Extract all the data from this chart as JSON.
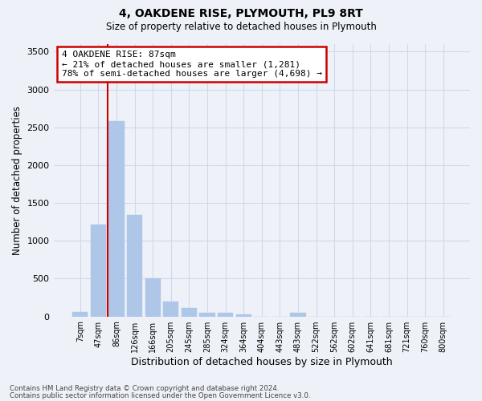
{
  "title": "4, OAKDENE RISE, PLYMOUTH, PL9 8RT",
  "subtitle": "Size of property relative to detached houses in Plymouth",
  "xlabel": "Distribution of detached houses by size in Plymouth",
  "ylabel": "Number of detached properties",
  "bar_color": "#aec6e8",
  "bar_edge_color": "#aec6e8",
  "categories": [
    "7sqm",
    "47sqm",
    "86sqm",
    "126sqm",
    "166sqm",
    "205sqm",
    "245sqm",
    "285sqm",
    "324sqm",
    "364sqm",
    "404sqm",
    "443sqm",
    "483sqm",
    "522sqm",
    "562sqm",
    "602sqm",
    "641sqm",
    "681sqm",
    "721sqm",
    "760sqm",
    "800sqm"
  ],
  "values": [
    55,
    1220,
    2580,
    1340,
    500,
    195,
    110,
    50,
    45,
    25,
    0,
    0,
    50,
    0,
    0,
    0,
    0,
    0,
    0,
    0,
    0
  ],
  "ylim": [
    0,
    3600
  ],
  "yticks": [
    0,
    500,
    1000,
    1500,
    2000,
    2500,
    3000,
    3500
  ],
  "marker_bar_index": 2,
  "annotation_text": "4 OAKDENE RISE: 87sqm\n← 21% of detached houses are smaller (1,281)\n78% of semi-detached houses are larger (4,698) →",
  "annotation_box_color": "#ffffff",
  "annotation_box_edge": "#cc0000",
  "marker_line_color": "#cc0000",
  "grid_color": "#d0d8e8",
  "background_color": "#eef2f8",
  "footer_line1": "Contains HM Land Registry data © Crown copyright and database right 2024.",
  "footer_line2": "Contains public sector information licensed under the Open Government Licence v3.0."
}
